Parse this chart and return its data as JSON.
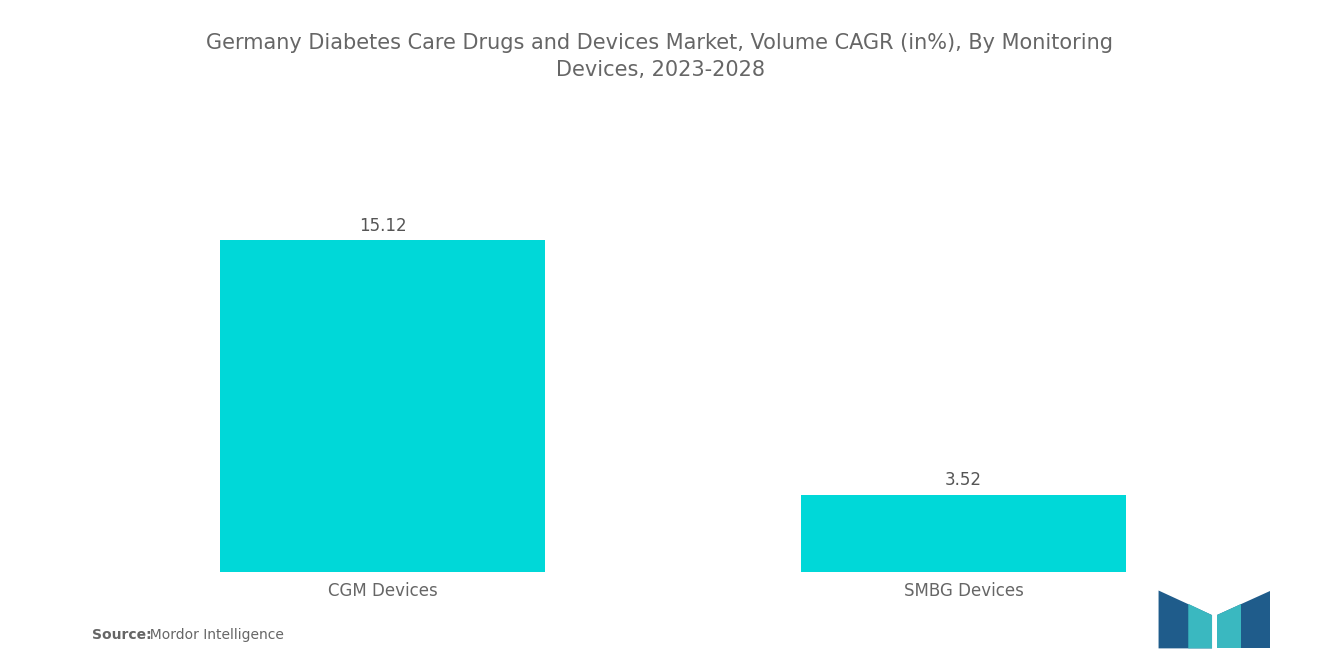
{
  "title": "Germany Diabetes Care Drugs and Devices Market, Volume CAGR (in%), By Monitoring\nDevices, 2023-2028",
  "categories": [
    "CGM Devices",
    "SMBG Devices"
  ],
  "values": [
    15.12,
    3.52
  ],
  "bar_color": "#00D8D8",
  "background_color": "#ffffff",
  "title_fontsize": 15,
  "label_fontsize": 12,
  "value_fontsize": 12,
  "ylim": [
    0,
    20
  ],
  "source_bold": "Source:",
  "source_normal": "  Mordor Intelligence",
  "title_color": "#666666",
  "label_color": "#666666",
  "value_color": "#555555",
  "bar_positions": [
    0.25,
    0.75
  ],
  "bar_width": 0.28
}
